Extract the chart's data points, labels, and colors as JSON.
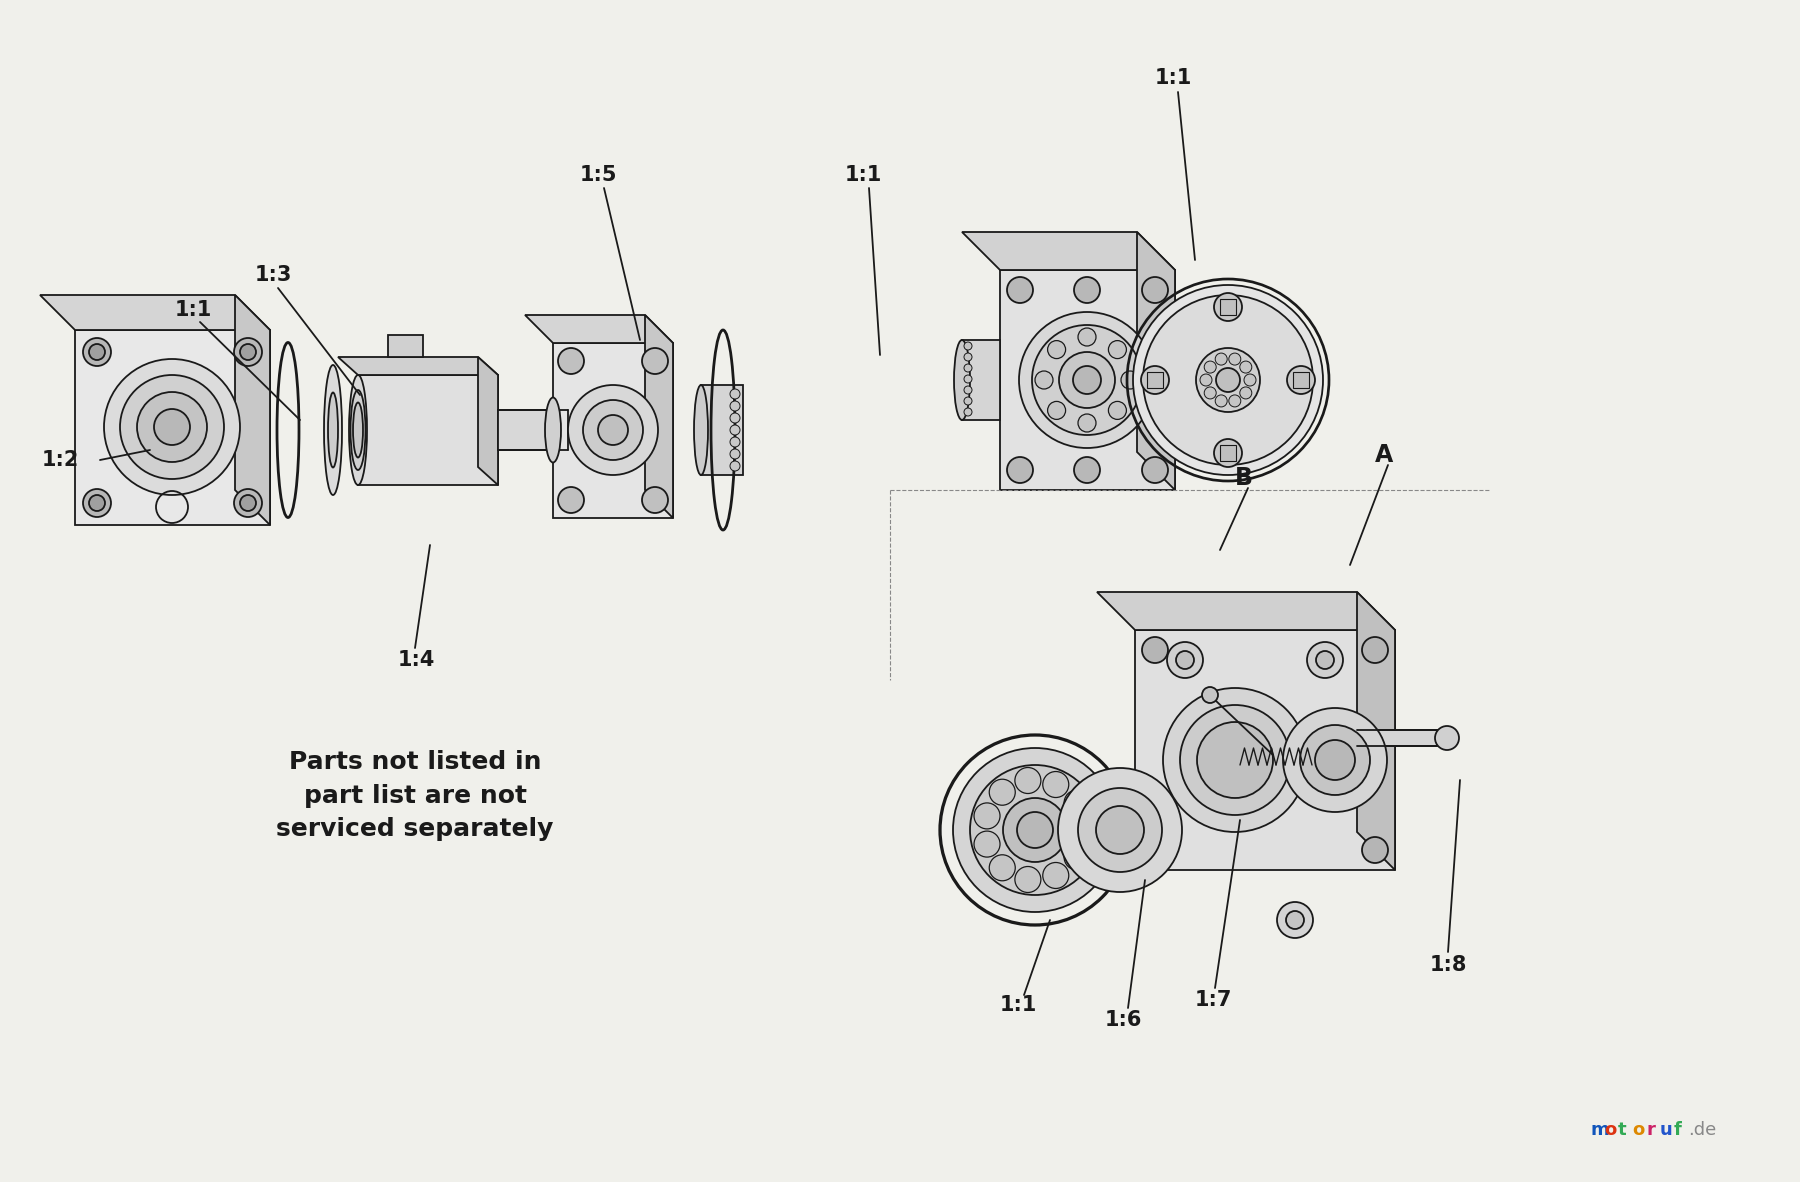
{
  "background_color": "#f0f0eb",
  "dark": "#1a1a1a",
  "lw_main": 1.3,
  "lw_thin": 0.8,
  "lw_thick": 2.0,
  "ann_fontsize": 15,
  "note_fontsize": 18,
  "note_bold": true,
  "note_text": "Parts not listed in\npart list are not\nserviced separately",
  "motoruf_letters": [
    "m",
    "o",
    "t",
    "o",
    "r",
    "u",
    "f"
  ],
  "motoruf_colors": [
    "#1155bb",
    "#dd3311",
    "#33aa55",
    "#dd8800",
    "#cc2266",
    "#2255cc",
    "#33aa55"
  ],
  "motoruf_fontsize": 13
}
